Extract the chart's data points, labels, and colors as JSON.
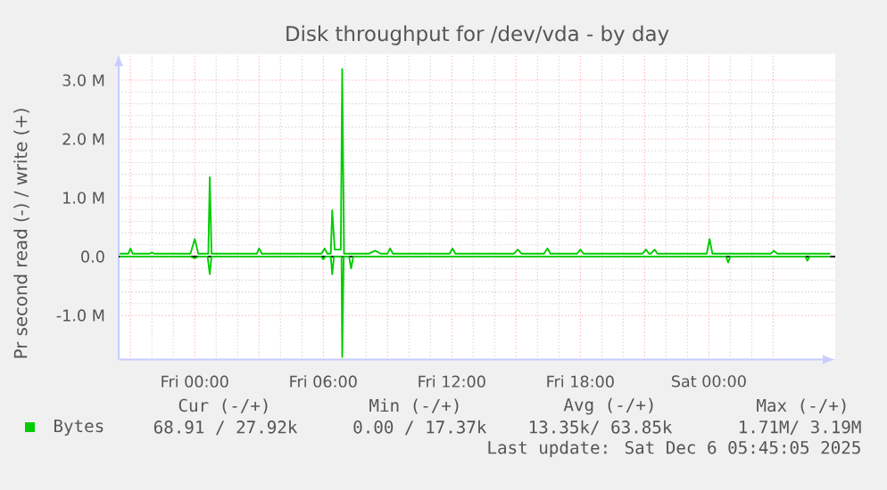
{
  "chart_data": {
    "type": "line",
    "title": "Disk throughput for /dev/vda - by day",
    "ylabel": "Pr second read (-) / write (+)",
    "xlim": [
      "2025-12-04T20:27",
      "2025-12-06T05:54"
    ],
    "ylim": [
      -1750000,
      3450000
    ],
    "xticks": [
      {
        "value": "2025-12-04T21:00",
        "label": null
      },
      {
        "value": "2025-12-05T00:00",
        "label": "Fri 00:00"
      },
      {
        "value": "2025-12-05T03:00",
        "label": null
      },
      {
        "value": "2025-12-05T06:00",
        "label": "Fri 06:00"
      },
      {
        "value": "2025-12-05T09:00",
        "label": null
      },
      {
        "value": "2025-12-05T12:00",
        "label": "Fri 12:00"
      },
      {
        "value": "2025-12-05T15:00",
        "label": null
      },
      {
        "value": "2025-12-05T18:00",
        "label": "Fri 18:00"
      },
      {
        "value": "2025-12-05T21:00",
        "label": null
      },
      {
        "value": "2025-12-06T00:00",
        "label": "Sat 00:00"
      },
      {
        "value": "2025-12-06T03:00",
        "label": null
      }
    ],
    "yticks": [
      {
        "value": -1000000,
        "label": "-1.0 M"
      },
      {
        "value": 0,
        "label": "0.0"
      },
      {
        "value": 1000000,
        "label": "1.0 M"
      },
      {
        "value": 2000000,
        "label": "2.0 M"
      },
      {
        "value": 3000000,
        "label": "3.0 M"
      }
    ],
    "grid": true,
    "legend": "bottom",
    "marker": "none",
    "line_style": "solid",
    "series": [
      {
        "name": "Bytes",
        "color": "#00cc00",
        "x": [
          "2025-12-04T20:30",
          "2025-12-04T20:54",
          "2025-12-04T21:00",
          "2025-12-04T21:06",
          "2025-12-04T21:54",
          "2025-12-04T22:00",
          "2025-12-04T22:06",
          "2025-12-04T23:48",
          "2025-12-05T00:00",
          "2025-12-05T00:10",
          "2025-12-05T00:38",
          "2025-12-05T00:42",
          "2025-12-05T00:47",
          "2025-12-05T02:54",
          "2025-12-05T03:00",
          "2025-12-05T03:08",
          "2025-12-05T05:55",
          "2025-12-05T06:04",
          "2025-12-05T06:11",
          "2025-12-05T06:21",
          "2025-12-05T06:25",
          "2025-12-05T06:32",
          "2025-12-05T06:49",
          "2025-12-05T06:53",
          "2025-12-05T06:58",
          "2025-12-05T08:08",
          "2025-12-05T08:25",
          "2025-12-05T08:41",
          "2025-12-05T09:00",
          "2025-12-05T09:07",
          "2025-12-05T09:15",
          "2025-12-05T11:54",
          "2025-12-05T12:02",
          "2025-12-05T12:10",
          "2025-12-05T14:54",
          "2025-12-05T15:05",
          "2025-12-05T15:15",
          "2025-12-05T16:18",
          "2025-12-05T16:28",
          "2025-12-05T16:36",
          "2025-12-05T17:51",
          "2025-12-05T18:00",
          "2025-12-05T18:09",
          "2025-12-05T20:54",
          "2025-12-05T21:04",
          "2025-12-05T21:12",
          "2025-12-05T21:18",
          "2025-12-05T21:28",
          "2025-12-05T21:36",
          "2025-12-05T23:54",
          "2025-12-06T00:02",
          "2025-12-06T00:10",
          "2025-12-06T02:54",
          "2025-12-06T03:02",
          "2025-12-06T03:12",
          "2025-12-06T05:40"
        ],
        "values": [
          50000,
          50000,
          140000,
          50000,
          50000,
          70000,
          50000,
          50000,
          300000,
          50000,
          50000,
          1350000,
          50000,
          50000,
          140000,
          50000,
          50000,
          140000,
          50000,
          50000,
          790000,
          120000,
          120000,
          3190000,
          50000,
          50000,
          100000,
          50000,
          50000,
          140000,
          50000,
          50000,
          140000,
          50000,
          50000,
          120000,
          50000,
          50000,
          140000,
          50000,
          50000,
          120000,
          50000,
          50000,
          120000,
          50000,
          50000,
          120000,
          50000,
          50000,
          300000,
          50000,
          50000,
          100000,
          50000,
          50000
        ]
      },
      {
        "color": "#00cc00",
        "x": [
          "2025-12-04T20:30",
          "2025-12-04T23:48",
          "2025-12-05T00:00",
          "2025-12-05T00:10",
          "2025-12-05T00:36",
          "2025-12-05T00:42",
          "2025-12-05T00:47",
          "2025-12-05T05:54",
          "2025-12-05T06:00",
          "2025-12-05T06:06",
          "2025-12-05T06:21",
          "2025-12-05T06:25",
          "2025-12-05T06:30",
          "2025-12-05T06:51",
          "2025-12-05T06:53",
          "2025-12-05T06:57",
          "2025-12-05T07:12",
          "2025-12-05T07:18",
          "2025-12-05T07:24",
          "2025-12-06T00:48",
          "2025-12-06T00:54",
          "2025-12-06T01:00",
          "2025-12-06T04:30",
          "2025-12-06T04:36",
          "2025-12-06T04:42",
          "2025-12-06T05:40"
        ],
        "values": [
          0,
          0,
          -30000,
          0,
          0,
          -300000,
          0,
          0,
          -50000,
          0,
          0,
          -300000,
          0,
          0,
          -1710000,
          0,
          0,
          -200000,
          0,
          0,
          -100000,
          0,
          0,
          -70000,
          0,
          0
        ]
      }
    ],
    "ref_lines": [
      {
        "axis": "y",
        "value": 0,
        "color": "#000000"
      }
    ],
    "annotations": [
      "Cur (-/+)",
      "Min (-/+)",
      "Avg (-/+)",
      "Max (-/+)",
      "68.91 / 27.92k",
      "0.00 / 17.37k",
      "13.35k/ 63.85k",
      "1.71M/  3.19M",
      "Last update: Sat Dec  6 05:45:05 2025"
    ]
  }
}
